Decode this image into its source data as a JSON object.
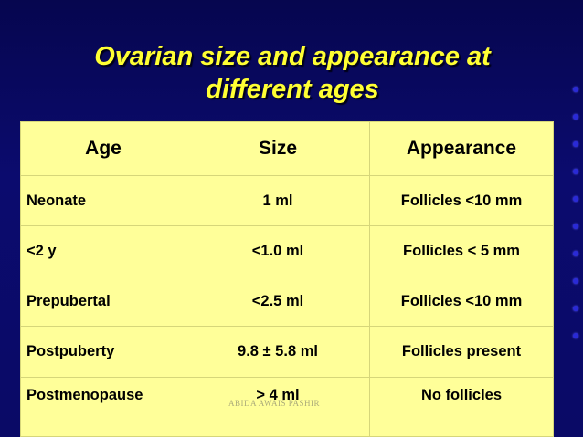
{
  "slide": {
    "title_line1": "Ovarian size and appearance  at",
    "title_line2": "different ages",
    "watermark": "ABIDA AWAIS PASHIR"
  },
  "table": {
    "headers": [
      "Age",
      "Size",
      "Appearance"
    ],
    "rows": [
      {
        "age": "Neonate",
        "size": "1 ml",
        "appearance": "Follicles <10 mm"
      },
      {
        "age": "<2 y",
        "size": "<1.0 ml",
        "appearance": "Follicles < 5 mm"
      },
      {
        "age": "Prepubertal",
        "size": "<2.5 ml",
        "appearance": "Follicles <10 mm"
      },
      {
        "age": "Postpuberty",
        "size": "9.8 ± 5.8 ml",
        "appearance": "Follicles present"
      },
      {
        "age": "Postmenopause",
        "size": "> 4 ml",
        "appearance": "No follicles"
      }
    ]
  },
  "colors": {
    "background": "#0a0a66",
    "title": "#ffff33",
    "table_fill": "#ffff99"
  }
}
